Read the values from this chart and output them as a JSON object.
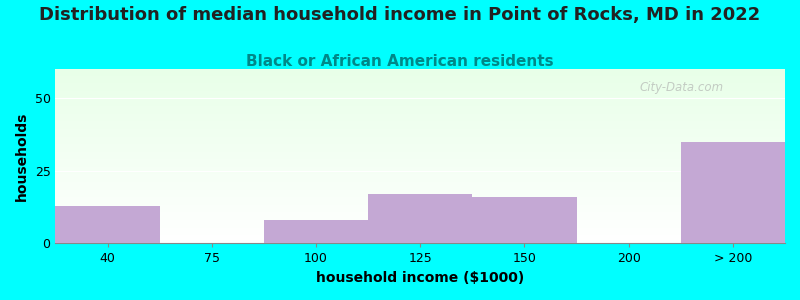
{
  "title": "Distribution of median household income in Point of Rocks, MD in 2022",
  "subtitle": "Black or African American residents",
  "xlabel": "household income ($1000)",
  "ylabel": "households",
  "background_color": "#00FFFF",
  "bar_color": "#C4A8D4",
  "categories": [
    "40",
    "75",
    "100",
    "125",
    "150",
    "200",
    "> 200"
  ],
  "values": [
    13,
    0,
    8,
    17,
    16,
    0,
    35
  ],
  "bin_edges": [
    0,
    1,
    2,
    3,
    4,
    5,
    6,
    7
  ],
  "ylim": [
    0,
    60
  ],
  "yticks": [
    0,
    25,
    50
  ],
  "title_fontsize": 13,
  "subtitle_fontsize": 11,
  "axis_label_fontsize": 10,
  "tick_fontsize": 9,
  "watermark_text": "City-Data.com",
  "subtitle_color": "#008888",
  "title_color": "#222222"
}
